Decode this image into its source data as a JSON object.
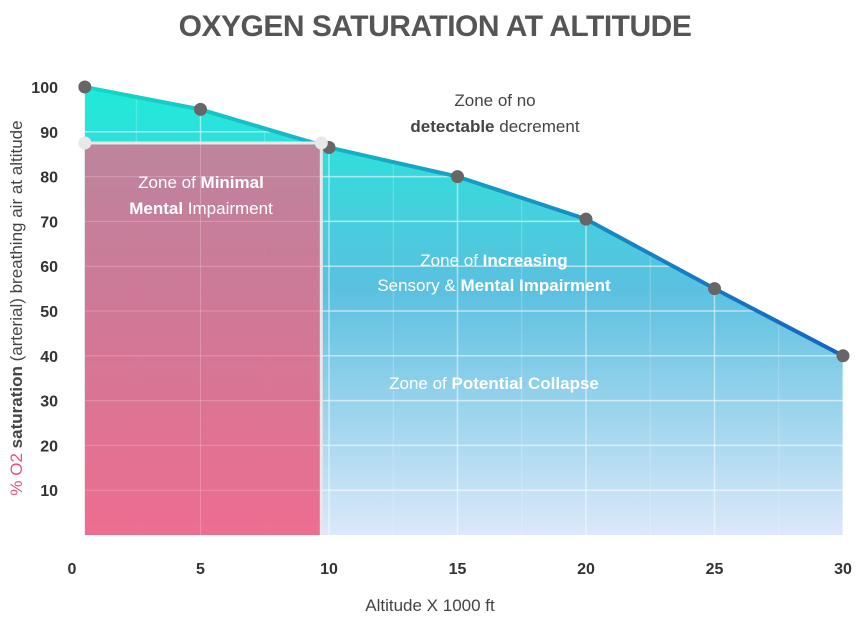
{
  "chart_data": {
    "type": "area",
    "title": "OXYGEN SATURATION AT ALTITUDE",
    "xlabel": "Altitude X 1000 ft",
    "ylabel": {
      "prefix": "% O2 ",
      "bold": "saturation",
      "rest": " (arterial) breathing air at altitude"
    },
    "xlim": [
      0,
      30
    ],
    "ylim": [
      0,
      100
    ],
    "x_ticks": [
      0,
      5,
      10,
      15,
      20,
      25,
      30
    ],
    "y_ticks": [
      10,
      20,
      30,
      40,
      50,
      60,
      70,
      80,
      90,
      100
    ],
    "grid": true,
    "series": [
      {
        "x": [
          0.5,
          5,
          10,
          15,
          20,
          25,
          30
        ],
        "y": [
          100,
          95,
          86.5,
          80,
          70.5,
          55,
          40
        ]
      }
    ],
    "threshold": {
      "y": 87.5,
      "x_start": 0.5,
      "x_end": 9.7
    },
    "zones": [
      {
        "parts": [
          [
            "Zone of no",
            false
          ]
        ],
        "parts2": [
          [
            "detectable",
            true
          ],
          [
            " decrement",
            false
          ]
        ],
        "style": "dark"
      },
      {
        "parts": [
          [
            "Zone of ",
            false
          ],
          [
            "Minimal",
            true
          ]
        ],
        "parts2": [
          [
            "Mental",
            true
          ],
          [
            " Impairment",
            false
          ]
        ],
        "style": "light"
      },
      {
        "parts": [
          [
            "Zone of ",
            false
          ],
          [
            "Increasing",
            true
          ]
        ],
        "parts2": [
          [
            "Sensory & ",
            false
          ],
          [
            "Mental Impairment",
            true
          ]
        ],
        "style": "light"
      },
      {
        "parts": [
          [
            "Zone of ",
            false
          ],
          [
            "Potential Collapse",
            true
          ]
        ],
        "parts2": [],
        "style": "light"
      }
    ],
    "colors": {
      "area_top": "#1EEBD8",
      "area_mid": "#5BC0E0",
      "area_bottom": "#DCE8FA",
      "line_start": "#14D9C9",
      "line_end": "#1565C0",
      "zone_top": "#C77E98",
      "zone_bottom": "#EE6488",
      "points": "#666666",
      "threshold_points": "#E8E8E8",
      "ylabel_accent": "#E4547E"
    }
  }
}
